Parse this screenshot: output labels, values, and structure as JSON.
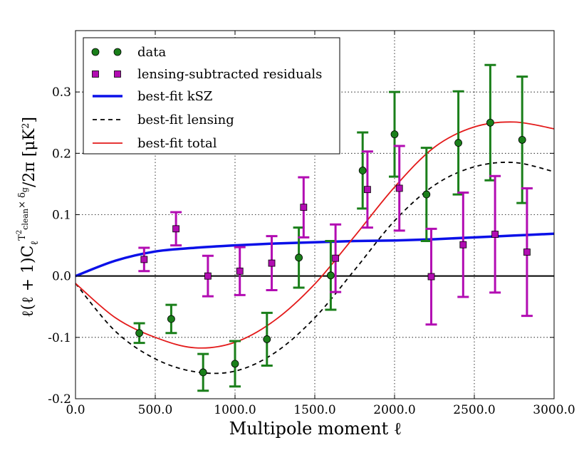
{
  "chart_data": {
    "type": "scatter",
    "xlabel": "Multipole moment ℓ",
    "ylabel": "ℓ(ℓ + 1)C_ℓ^{T²_clean × δ_g}/2π [μK²]",
    "ylabel_parts": {
      "main": "ℓ(ℓ + 1)C",
      "sub": "ℓ",
      "sup_a": "T",
      "sup_b": "2",
      "sup_c": "clean",
      "sup_d": "× δ",
      "sup_e": "g",
      "tail": "/2π [μK",
      "tail_sup": "2",
      "tail_end": "]"
    },
    "xlim": [
      0,
      3000
    ],
    "ylim": [
      -0.2,
      0.4
    ],
    "grid": true,
    "legend_position": "top-left",
    "x_ticks": [
      0,
      500,
      1000,
      1500,
      2000,
      2500,
      3000
    ],
    "x_tick_labels": [
      "0.0",
      "500.0",
      "1000.0",
      "1500.0",
      "2000.0",
      "2500.0",
      "3000.0"
    ],
    "y_ticks": [
      -0.2,
      -0.1,
      0.0,
      0.1,
      0.2,
      0.3
    ],
    "y_tick_labels": [
      "-0.2",
      "-0.1",
      "0.0",
      "0.1",
      "0.2",
      "0.3"
    ],
    "series": [
      {
        "name": "data",
        "kind": "errorbar",
        "color": "#1a7f1a",
        "marker": "circle",
        "x": [
          400,
          600,
          800,
          1000,
          1200,
          1400,
          1600,
          1800,
          2000,
          2200,
          2400,
          2600,
          2800
        ],
        "y": [
          -0.093,
          -0.07,
          -0.157,
          -0.143,
          -0.103,
          0.03,
          0.001,
          0.172,
          0.231,
          0.133,
          0.217,
          0.25,
          0.222
        ],
        "err": [
          0.016,
          0.023,
          0.03,
          0.037,
          0.043,
          0.049,
          0.056,
          0.062,
          0.069,
          0.076,
          0.084,
          0.094,
          0.103
        ]
      },
      {
        "name": "lensing-subtracted residuals",
        "kind": "errorbar",
        "color": "#b20cb2",
        "marker": "square",
        "x": [
          430,
          630,
          830,
          1030,
          1230,
          1430,
          1630,
          1830,
          2030,
          2230,
          2430,
          2630,
          2830
        ],
        "y": [
          0.027,
          0.077,
          0.0,
          0.008,
          0.021,
          0.112,
          0.029,
          0.141,
          0.143,
          -0.001,
          0.051,
          0.068,
          0.039
        ],
        "err": [
          0.019,
          0.027,
          0.033,
          0.039,
          0.044,
          0.049,
          0.055,
          0.062,
          0.069,
          0.078,
          0.085,
          0.095,
          0.104
        ]
      },
      {
        "name": "best-fit kSZ",
        "kind": "line",
        "color": "#0a10e8",
        "style": "solid",
        "x": [
          0,
          250,
          500,
          750,
          1000,
          1250,
          1500,
          1750,
          2000,
          2250,
          2500,
          2750,
          3000
        ],
        "y": [
          0.0,
          0.025,
          0.04,
          0.046,
          0.05,
          0.053,
          0.055,
          0.057,
          0.058,
          0.06,
          0.063,
          0.066,
          0.069
        ]
      },
      {
        "name": "best-fit lensing",
        "kind": "line",
        "color": "#000000",
        "style": "dashed",
        "x": [
          0,
          250,
          500,
          750,
          1000,
          1250,
          1500,
          1750,
          2000,
          2250,
          2500,
          2750,
          3000
        ],
        "y": [
          -0.012,
          -0.09,
          -0.135,
          -0.156,
          -0.155,
          -0.125,
          -0.068,
          0.01,
          0.09,
          0.148,
          0.178,
          0.185,
          0.17
        ]
      },
      {
        "name": "best-fit total",
        "kind": "line",
        "color": "#e31a1a",
        "style": "solid",
        "x": [
          0,
          250,
          500,
          750,
          1000,
          1250,
          1500,
          1750,
          2000,
          2250,
          2500,
          2750,
          3000
        ],
        "y": [
          -0.012,
          -0.068,
          -0.1,
          -0.117,
          -0.108,
          -0.072,
          -0.013,
          0.065,
          0.145,
          0.21,
          0.243,
          0.251,
          0.24
        ]
      }
    ],
    "reference_line": {
      "y": 0.0,
      "color": "#000000"
    }
  }
}
